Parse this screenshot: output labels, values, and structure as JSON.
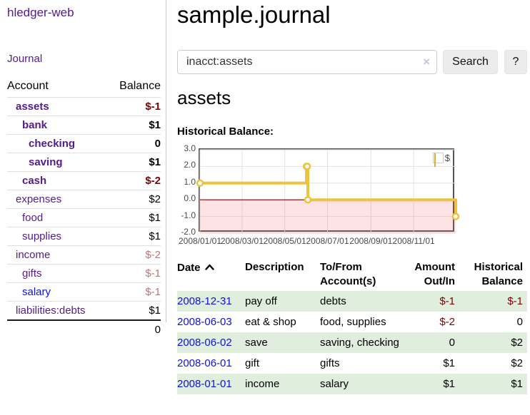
{
  "app": {
    "brand": "hledger-web"
  },
  "nav": {
    "journal": "Journal"
  },
  "header": {
    "title": "sample.journal"
  },
  "search": {
    "value": "inacct:assets",
    "clear_icon": "×",
    "search_button": "Search",
    "help_button": "?"
  },
  "account_view": {
    "heading": "assets",
    "chart_title": "Historical Balance:"
  },
  "colors": {
    "link_purple": "#551a8b",
    "link_blue": "#1010dd",
    "negative": "#7f0000",
    "faded_negative": "#bb7878",
    "row_green": "#dfeedd",
    "accent_gold": "#edc240"
  },
  "sidebar": {
    "account_header": "Account",
    "balance_header": "Balance",
    "accounts": [
      {
        "name": "assets",
        "balance": "$-1",
        "indent": 1,
        "bold": true,
        "link_color": "purple",
        "balance_style": "negative"
      },
      {
        "name": "bank",
        "balance": "$1",
        "indent": 2,
        "bold": true,
        "link_color": "purple",
        "balance_style": "normal"
      },
      {
        "name": "checking",
        "balance": "0",
        "indent": 3,
        "bold": true,
        "link_color": "purple",
        "balance_style": "normal"
      },
      {
        "name": "saving",
        "balance": "$1",
        "indent": 3,
        "bold": true,
        "link_color": "purple",
        "balance_style": "normal"
      },
      {
        "name": "cash",
        "balance": "$-2",
        "indent": 2,
        "bold": true,
        "link_color": "purple",
        "balance_style": "negative"
      },
      {
        "name": "expenses",
        "balance": "$2",
        "indent": 1,
        "bold": false,
        "link_color": "purple",
        "balance_style": "normal"
      },
      {
        "name": "food",
        "balance": "$1",
        "indent": 2,
        "bold": false,
        "link_color": "purple",
        "balance_style": "normal"
      },
      {
        "name": "supplies",
        "balance": "$1",
        "indent": 2,
        "bold": false,
        "link_color": "purple",
        "balance_style": "normal"
      },
      {
        "name": "income",
        "balance": "$-2",
        "indent": 1,
        "bold": false,
        "link_color": "purple",
        "balance_style": "faded-negative"
      },
      {
        "name": "gifts",
        "balance": "$-1",
        "indent": 2,
        "bold": false,
        "link_color": "purple",
        "balance_style": "faded-negative"
      },
      {
        "name": "salary",
        "balance": "$-1",
        "indent": 2,
        "bold": false,
        "link_color": "blue",
        "balance_style": "faded-negative"
      },
      {
        "name": "liabilities:debts",
        "balance": "$1",
        "indent": 1,
        "bold": false,
        "link_color": "purple",
        "balance_style": "normal"
      }
    ],
    "total": "0"
  },
  "chart_data": {
    "type": "line",
    "title": "Historical Balance",
    "steps": true,
    "ylim": [
      -2,
      3
    ],
    "x_domain_days": [
      0,
      365
    ],
    "yticks": [
      {
        "label": "3.0",
        "value": 3
      },
      {
        "label": "2.0",
        "value": 2
      },
      {
        "label": "1.0",
        "value": 1
      },
      {
        "label": "0.0",
        "value": 0
      },
      {
        "label": "-1.0",
        "value": -1
      },
      {
        "label": "-2.0",
        "value": -2
      }
    ],
    "xticks": [
      {
        "label": "2008/01/01",
        "day": 0
      },
      {
        "label": "2008/03/01",
        "day": 60
      },
      {
        "label": "2008/05/01",
        "day": 121
      },
      {
        "label": "2008/07/01",
        "day": 182
      },
      {
        "label": "2008/09/01",
        "day": 244
      },
      {
        "label": "2008/11/01",
        "day": 305
      }
    ],
    "series": [
      {
        "name": "$",
        "color": "#edc240",
        "points": [
          {
            "date": "2008-01-01",
            "day": 0,
            "value": 1
          },
          {
            "date": "2008-06-01",
            "day": 152,
            "value": 2
          },
          {
            "date": "2008-06-02",
            "day": 153,
            "value": 2
          },
          {
            "date": "2008-06-03",
            "day": 154,
            "value": 0
          },
          {
            "date": "2008-12-31",
            "day": 365,
            "value": -1
          }
        ]
      }
    ],
    "zero_line_color": "#8b0000",
    "negative_region_color": "rgba(244,100,100,0.18)",
    "grid": true,
    "legend": [
      {
        "label": "$",
        "color": "#edc240"
      }
    ],
    "legend_position": "top-right"
  },
  "register": {
    "headers": {
      "date": "Date",
      "description": "Description",
      "accounts": "To/From Account(s)",
      "amount": "Amount Out/In",
      "balance": "Historical Balance"
    },
    "rows": [
      {
        "date": "2008-12-31",
        "description": "pay off",
        "accounts": "debts",
        "amount": "$-1",
        "amount_negative": true,
        "balance": "$-1",
        "balance_negative": true
      },
      {
        "date": "2008-06-03",
        "description": "eat & shop",
        "accounts": "food, supplies",
        "amount": "$-2",
        "amount_negative": true,
        "balance": "0",
        "balance_negative": false
      },
      {
        "date": "2008-06-02",
        "description": "save",
        "accounts": "saving, checking",
        "amount": "0",
        "amount_negative": false,
        "balance": "$2",
        "balance_negative": false
      },
      {
        "date": "2008-06-01",
        "description": "gift",
        "accounts": "gifts",
        "amount": "$1",
        "amount_negative": false,
        "balance": "$2",
        "balance_negative": false
      },
      {
        "date": "2008-01-01",
        "description": "income",
        "accounts": "salary",
        "amount": "$1",
        "amount_negative": false,
        "balance": "$1",
        "balance_negative": false
      }
    ]
  }
}
